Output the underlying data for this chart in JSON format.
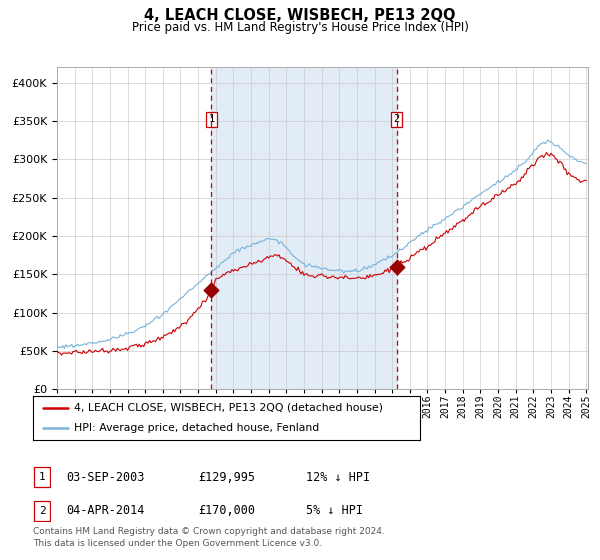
{
  "title": "4, LEACH CLOSE, WISBECH, PE13 2QQ",
  "subtitle": "Price paid vs. HM Land Registry's House Price Index (HPI)",
  "legend_line1": "4, LEACH CLOSE, WISBECH, PE13 2QQ (detached house)",
  "legend_line2": "HPI: Average price, detached house, Fenland",
  "footnote1": "Contains HM Land Registry data © Crown copyright and database right 2024.",
  "footnote2": "This data is licensed under the Open Government Licence v3.0.",
  "purchase1_date": "03-SEP-2003",
  "purchase1_price": "£129,995",
  "purchase1_label": "1",
  "purchase1_hpi": "12% ↓ HPI",
  "purchase2_date": "04-APR-2014",
  "purchase2_price": "£170,000",
  "purchase2_label": "2",
  "purchase2_hpi": "5% ↓ HPI",
  "hpi_color": "#7ab4d8",
  "price_color": "#cc0000",
  "purchase_marker_color": "#990000",
  "bg_shaded_color": "#dce9f5",
  "vline_color": "#cc0000",
  "grid_color": "#cccccc",
  "ylim": [
    0,
    420000
  ],
  "yticks": [
    0,
    50000,
    100000,
    150000,
    200000,
    250000,
    300000,
    350000,
    400000
  ],
  "year_start": 1995,
  "year_end": 2025,
  "purchase1_year": 2003.75,
  "purchase2_year": 2014.25
}
